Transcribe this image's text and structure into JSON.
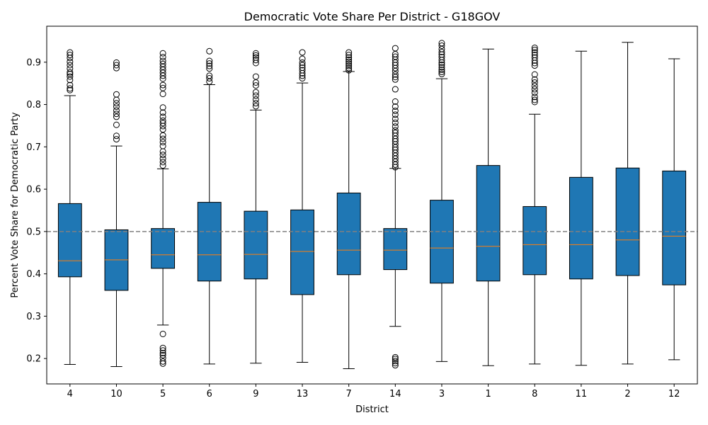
{
  "chart_data": {
    "type": "box",
    "title": "Democratic Vote Share Per District - G18GOV",
    "xlabel": "District",
    "ylabel": "Percent Vote Share for Democratic Party",
    "ylim": [
      0.14,
      0.985
    ],
    "yticks": [
      0.2,
      0.3,
      0.4,
      0.5,
      0.6,
      0.7,
      0.8,
      0.9
    ],
    "ytick_labels": [
      "0.2",
      "0.3",
      "0.4",
      "0.5",
      "0.6",
      "0.7",
      "0.8",
      "0.9"
    ],
    "reference_line": {
      "value": 0.5,
      "style": "dashed",
      "color": "#808080"
    },
    "box_color": "#1f77b4",
    "median_color": "#ff7f0e",
    "grid": false,
    "categories": [
      "4",
      "10",
      "5",
      "6",
      "9",
      "13",
      "7",
      "14",
      "3",
      "1",
      "8",
      "11",
      "2",
      "12"
    ],
    "boxes": [
      {
        "label": "4",
        "whisker_low": 0.186,
        "q1": 0.393,
        "median": 0.431,
        "q3": 0.566,
        "whisker_high": 0.821,
        "outliers": [
          0.834,
          0.838,
          0.846,
          0.858,
          0.866,
          0.872,
          0.876,
          0.885,
          0.893,
          0.901,
          0.91,
          0.917,
          0.923
        ]
      },
      {
        "label": "10",
        "whisker_low": 0.181,
        "q1": 0.361,
        "median": 0.433,
        "q3": 0.504,
        "whisker_high": 0.702,
        "outliers": [
          0.718,
          0.726,
          0.752,
          0.771,
          0.778,
          0.786,
          0.795,
          0.803,
          0.811,
          0.824,
          0.886,
          0.893,
          0.899
        ]
      },
      {
        "label": "5",
        "whisker_low": 0.279,
        "q1": 0.413,
        "median": 0.445,
        "q3": 0.507,
        "whisker_high": 0.648,
        "outliers": [
          0.188,
          0.193,
          0.201,
          0.208,
          0.213,
          0.219,
          0.225,
          0.258,
          0.656,
          0.664,
          0.672,
          0.681,
          0.689,
          0.702,
          0.711,
          0.719,
          0.727,
          0.741,
          0.749,
          0.756,
          0.762,
          0.771,
          0.781,
          0.793,
          0.825,
          0.839,
          0.846,
          0.861,
          0.868,
          0.875,
          0.882,
          0.889,
          0.896,
          0.903,
          0.912,
          0.921
        ]
      },
      {
        "label": "6",
        "whisker_low": 0.187,
        "q1": 0.383,
        "median": 0.445,
        "q3": 0.569,
        "whisker_high": 0.847,
        "outliers": [
          0.854,
          0.862,
          0.868,
          0.885,
          0.891,
          0.897,
          0.903,
          0.926
        ]
      },
      {
        "label": "9",
        "whisker_low": 0.189,
        "q1": 0.388,
        "median": 0.446,
        "q3": 0.548,
        "whisker_high": 0.787,
        "outliers": [
          0.796,
          0.803,
          0.812,
          0.821,
          0.829,
          0.845,
          0.852,
          0.866,
          0.898,
          0.905,
          0.911,
          0.916,
          0.921
        ]
      },
      {
        "label": "13",
        "whisker_low": 0.191,
        "q1": 0.351,
        "median": 0.453,
        "q3": 0.551,
        "whisker_high": 0.851,
        "outliers": [
          0.862,
          0.868,
          0.874,
          0.881,
          0.887,
          0.893,
          0.899,
          0.908,
          0.923
        ]
      },
      {
        "label": "7",
        "whisker_low": 0.176,
        "q1": 0.398,
        "median": 0.456,
        "q3": 0.591,
        "whisker_high": 0.878,
        "outliers": [
          0.881,
          0.886,
          0.891,
          0.896,
          0.901,
          0.906,
          0.911,
          0.917,
          0.923
        ]
      },
      {
        "label": "14",
        "whisker_low": 0.276,
        "q1": 0.41,
        "median": 0.456,
        "q3": 0.507,
        "whisker_high": 0.649,
        "outliers": [
          0.184,
          0.189,
          0.194,
          0.199,
          0.203,
          0.652,
          0.658,
          0.665,
          0.672,
          0.679,
          0.686,
          0.693,
          0.699,
          0.706,
          0.713,
          0.719,
          0.726,
          0.733,
          0.739,
          0.748,
          0.757,
          0.766,
          0.776,
          0.785,
          0.795,
          0.807,
          0.836,
          0.859,
          0.865,
          0.871,
          0.879,
          0.886,
          0.893,
          0.899,
          0.906,
          0.913,
          0.919,
          0.933
        ]
      },
      {
        "label": "3",
        "whisker_low": 0.193,
        "q1": 0.378,
        "median": 0.461,
        "q3": 0.574,
        "whisker_high": 0.861,
        "outliers": [
          0.872,
          0.877,
          0.882,
          0.888,
          0.894,
          0.899,
          0.905,
          0.912,
          0.918,
          0.924,
          0.931,
          0.939,
          0.945
        ]
      },
      {
        "label": "1",
        "whisker_low": 0.183,
        "q1": 0.383,
        "median": 0.465,
        "q3": 0.656,
        "whisker_high": 0.931,
        "outliers": []
      },
      {
        "label": "8",
        "whisker_low": 0.187,
        "q1": 0.398,
        "median": 0.469,
        "q3": 0.559,
        "whisker_high": 0.777,
        "outliers": [
          0.806,
          0.811,
          0.818,
          0.828,
          0.836,
          0.844,
          0.852,
          0.859,
          0.871,
          0.892,
          0.898,
          0.904,
          0.911,
          0.917,
          0.923,
          0.929,
          0.934
        ]
      },
      {
        "label": "11",
        "whisker_low": 0.184,
        "q1": 0.388,
        "median": 0.469,
        "q3": 0.628,
        "whisker_high": 0.926,
        "outliers": []
      },
      {
        "label": "2",
        "whisker_low": 0.187,
        "q1": 0.396,
        "median": 0.48,
        "q3": 0.65,
        "whisker_high": 0.947,
        "outliers": []
      },
      {
        "label": "12",
        "whisker_low": 0.197,
        "q1": 0.374,
        "median": 0.489,
        "q3": 0.643,
        "whisker_high": 0.908,
        "outliers": []
      }
    ]
  }
}
